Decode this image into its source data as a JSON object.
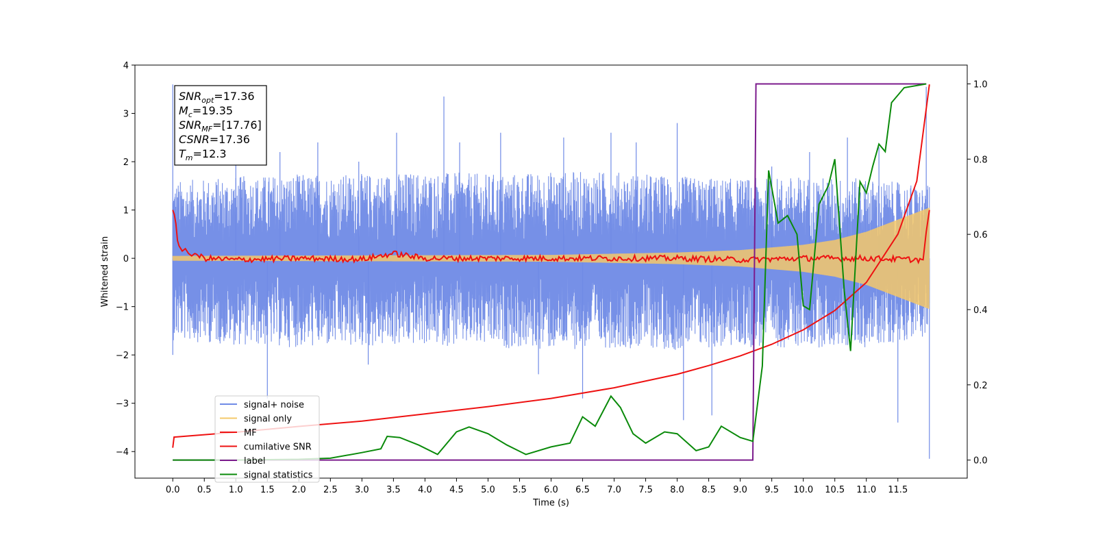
{
  "chart_data": {
    "type": "line",
    "xlabel": "Time (s)",
    "ylabel": "Whitened strain",
    "xlim": [
      -0.6,
      12.6
    ],
    "ylim": [
      -4.55,
      4.0
    ],
    "y2lim": [
      -0.048,
      1.05
    ],
    "x_ticks": [
      0.0,
      0.5,
      1.0,
      1.5,
      2.0,
      2.5,
      3.0,
      3.5,
      4.0,
      4.5,
      5.0,
      5.5,
      6.0,
      6.5,
      7.0,
      7.5,
      8.0,
      8.5,
      9.0,
      9.5,
      10.0,
      10.5,
      11.0,
      11.5
    ],
    "x_tick_labels": [
      "0.0",
      "0.5",
      "1.0",
      "1.5",
      "2.0",
      "2.5",
      "3.0",
      "3.5",
      "4.0",
      "4.5",
      "5.0",
      "5.5",
      "6.0",
      "6.5",
      "7.0",
      "7.5",
      "8.0",
      "8.5",
      "9.0",
      "9.5",
      "10.0",
      "10.5",
      "11.0",
      "11.5"
    ],
    "y_ticks": [
      4,
      3,
      2,
      1,
      0,
      -1,
      -2,
      -3,
      -4
    ],
    "y_tick_labels": [
      "4",
      "3",
      "2",
      "1",
      "0",
      "−1",
      "−2",
      "−3",
      "−4"
    ],
    "y2_ticks": [
      1.0,
      0.8,
      0.6,
      0.4,
      0.2,
      0.0
    ],
    "y2_tick_labels": [
      "1.0",
      "0.8",
      "0.6",
      "0.4",
      "0.2",
      "0.0"
    ],
    "grid": false,
    "legend_position": "lower-left",
    "annotation": {
      "lines": [
        {
          "var": "SNR",
          "sub": "opt",
          "value": "=17.36"
        },
        {
          "var": "M",
          "sub": "c",
          "value": "=19.35"
        },
        {
          "var": "SNR",
          "sub": "MF",
          "value": "=[17.76]"
        },
        {
          "var": "CSNR",
          "sub": "",
          "value": "=17.36"
        },
        {
          "var": "T",
          "sub": "m",
          "value": "=12.3"
        }
      ]
    },
    "series": [
      {
        "name": "signal+ noise",
        "axis": "left",
        "color": "#6f8ae6",
        "x_range": [
          0.0,
          12.0
        ],
        "envelope_upper": [
          [
            0.0,
            1.6
          ],
          [
            1.0,
            1.7
          ],
          [
            2.0,
            1.75
          ],
          [
            3.0,
            1.75
          ],
          [
            4.0,
            1.8
          ],
          [
            5.0,
            1.75
          ],
          [
            6.0,
            1.8
          ],
          [
            7.0,
            1.8
          ],
          [
            8.0,
            1.7
          ],
          [
            9.0,
            1.65
          ],
          [
            10.0,
            1.7
          ],
          [
            11.0,
            1.65
          ],
          [
            12.0,
            1.5
          ]
        ],
        "envelope_lower": [
          [
            0.0,
            -1.7
          ],
          [
            1.0,
            -1.8
          ],
          [
            2.0,
            -1.85
          ],
          [
            3.0,
            -1.85
          ],
          [
            4.0,
            -1.8
          ],
          [
            5.0,
            -1.85
          ],
          [
            6.0,
            -1.9
          ],
          [
            7.0,
            -1.85
          ],
          [
            8.0,
            -1.9
          ],
          [
            9.0,
            -1.85
          ],
          [
            10.0,
            -1.85
          ],
          [
            11.0,
            -1.85
          ],
          [
            12.0,
            -1.6
          ]
        ],
        "spikes": [
          [
            0.0,
            3.6
          ],
          [
            0.0,
            -2.0
          ],
          [
            1.5,
            -2.9
          ],
          [
            1.0,
            2.4
          ],
          [
            1.7,
            2.2
          ],
          [
            2.3,
            2.4
          ],
          [
            2.95,
            2.0
          ],
          [
            3.1,
            -2.2
          ],
          [
            3.55,
            2.6
          ],
          [
            4.3,
            3.35
          ],
          [
            4.55,
            2.4
          ],
          [
            5.2,
            2.6
          ],
          [
            5.8,
            -2.4
          ],
          [
            6.2,
            2.5
          ],
          [
            6.5,
            -2.9
          ],
          [
            6.95,
            2.6
          ],
          [
            7.35,
            2.4
          ],
          [
            8.0,
            2.8
          ],
          [
            8.1,
            -3.35
          ],
          [
            8.55,
            -3.25
          ],
          [
            9.5,
            1.9
          ],
          [
            10.1,
            2.2
          ],
          [
            10.7,
            2.5
          ],
          [
            11.2,
            2.3
          ],
          [
            11.5,
            -3.4
          ],
          [
            11.95,
            3.55
          ],
          [
            12.0,
            -4.15
          ]
        ]
      },
      {
        "name": "signal only",
        "axis": "left",
        "color": "#f4c86a",
        "envelope": [
          [
            0.0,
            0.05
          ],
          [
            6.0,
            0.07
          ],
          [
            8.0,
            0.12
          ],
          [
            9.0,
            0.17
          ],
          [
            10.0,
            0.28
          ],
          [
            10.5,
            0.38
          ],
          [
            11.0,
            0.55
          ],
          [
            11.5,
            0.8
          ],
          [
            12.0,
            1.05
          ]
        ]
      },
      {
        "name": "MF",
        "axis": "left",
        "color": "#ee1111",
        "points": [
          [
            0.0,
            1.0
          ],
          [
            0.04,
            0.85
          ],
          [
            0.08,
            0.3
          ],
          [
            0.15,
            0.15
          ],
          [
            0.2,
            0.2
          ],
          [
            0.25,
            0.1
          ],
          [
            0.3,
            0.05
          ],
          [
            0.35,
            0.1
          ],
          [
            0.5,
            0.0
          ],
          [
            1.0,
            -0.03
          ],
          [
            2.0,
            0.0
          ],
          [
            3.0,
            -0.02
          ],
          [
            3.5,
            0.1
          ],
          [
            4.0,
            0.0
          ],
          [
            5.0,
            0.0
          ],
          [
            6.0,
            0.0
          ],
          [
            7.0,
            0.0
          ],
          [
            8.0,
            0.0
          ],
          [
            9.0,
            -0.03
          ],
          [
            10.0,
            0.0
          ],
          [
            11.0,
            0.0
          ],
          [
            11.9,
            -0.03
          ],
          [
            11.95,
            0.55
          ],
          [
            12.0,
            1.0
          ]
        ]
      },
      {
        "name": "cumilative SNR",
        "axis": "left",
        "color": "#ee1111",
        "points": [
          [
            0.0,
            -3.92
          ],
          [
            0.02,
            -3.7
          ],
          [
            1.0,
            -3.6
          ],
          [
            2.0,
            -3.48
          ],
          [
            3.0,
            -3.37
          ],
          [
            4.0,
            -3.22
          ],
          [
            5.0,
            -3.07
          ],
          [
            6.0,
            -2.9
          ],
          [
            7.0,
            -2.68
          ],
          [
            8.0,
            -2.4
          ],
          [
            8.5,
            -2.22
          ],
          [
            9.0,
            -2.02
          ],
          [
            9.5,
            -1.78
          ],
          [
            10.0,
            -1.48
          ],
          [
            10.5,
            -1.08
          ],
          [
            11.0,
            -0.5
          ],
          [
            11.5,
            0.5
          ],
          [
            11.8,
            1.6
          ],
          [
            12.0,
            3.6
          ]
        ]
      },
      {
        "name": "label",
        "axis": "right",
        "color": "#7b1a8c",
        "points": [
          [
            0.0,
            0.0
          ],
          [
            9.2,
            0.0
          ],
          [
            9.25,
            1.0
          ],
          [
            11.95,
            1.0
          ]
        ]
      },
      {
        "name": "signal statistics",
        "axis": "right",
        "color": "#0a8a0a",
        "points": [
          [
            0.0,
            0.0
          ],
          [
            1.0,
            0.0
          ],
          [
            2.0,
            0.002
          ],
          [
            2.5,
            0.005
          ],
          [
            3.0,
            0.02
          ],
          [
            3.3,
            0.03
          ],
          [
            3.4,
            0.063
          ],
          [
            3.6,
            0.06
          ],
          [
            3.9,
            0.04
          ],
          [
            4.2,
            0.015
          ],
          [
            4.5,
            0.075
          ],
          [
            4.7,
            0.088
          ],
          [
            5.0,
            0.07
          ],
          [
            5.3,
            0.04
          ],
          [
            5.6,
            0.015
          ],
          [
            6.0,
            0.035
          ],
          [
            6.3,
            0.045
          ],
          [
            6.5,
            0.115
          ],
          [
            6.7,
            0.09
          ],
          [
            6.95,
            0.17
          ],
          [
            7.1,
            0.14
          ],
          [
            7.3,
            0.07
          ],
          [
            7.5,
            0.045
          ],
          [
            7.8,
            0.075
          ],
          [
            8.0,
            0.07
          ],
          [
            8.3,
            0.025
          ],
          [
            8.5,
            0.035
          ],
          [
            8.7,
            0.09
          ],
          [
            9.0,
            0.06
          ],
          [
            9.2,
            0.05
          ],
          [
            9.35,
            0.25
          ],
          [
            9.45,
            0.77
          ],
          [
            9.6,
            0.63
          ],
          [
            9.75,
            0.65
          ],
          [
            9.9,
            0.6
          ],
          [
            10.0,
            0.41
          ],
          [
            10.1,
            0.4
          ],
          [
            10.25,
            0.68
          ],
          [
            10.4,
            0.73
          ],
          [
            10.5,
            0.8
          ],
          [
            10.65,
            0.45
          ],
          [
            10.75,
            0.29
          ],
          [
            10.9,
            0.74
          ],
          [
            11.0,
            0.71
          ],
          [
            11.1,
            0.78
          ],
          [
            11.2,
            0.84
          ],
          [
            11.3,
            0.82
          ],
          [
            11.4,
            0.95
          ],
          [
            11.6,
            0.99
          ],
          [
            11.95,
            1.0
          ]
        ]
      }
    ]
  }
}
